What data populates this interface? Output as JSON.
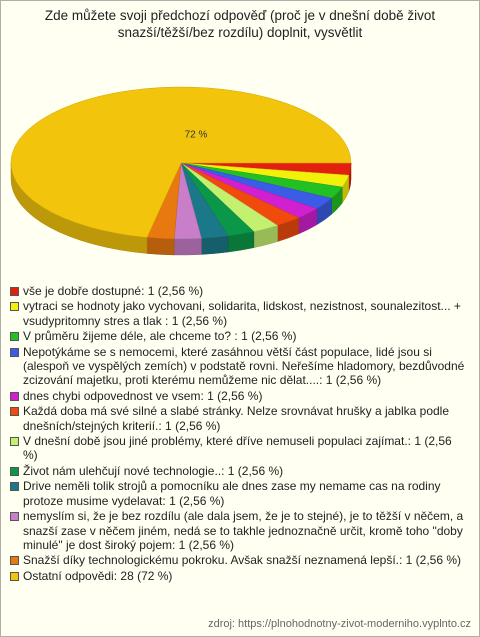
{
  "chart_data": {
    "type": "pie",
    "title": "Zde můžete svoji předchozí odpověď (proč je v dnešní době život snazší/těžší/bez rozdílu) doplnit, vysvětlit",
    "categories": [
      "vše je dobře dostupné: 1 (2,56 %)",
      "vytraci se hodnoty jako vychovani, solidarita, lidskost, nezistnost, sounalezitost... + vsudypritomny stres a tlak : 1 (2,56 %)",
      "V průměru žijeme déle, ale chceme to? : 1 (2,56 %)",
      "Nepotýkáme se s nemocemi, které zasáhnou větší část populace, lidé jsou si (alespoň ve vyspělých zemích) v podstatě rovni. Neřešíme hladomory, bezdůvodné zcizování majetku, proti kterému nemůžeme nic dělat....: 1 (2,56 %)",
      "dnes chybi odpovednost ve vsem: 1 (2,56 %)",
      "Každá doba má své silné a slabé stránky. Nelze srovnávat hrušky a jablka podle dnešních/stejných kriterií.: 1 (2,56 %)",
      "V dnešní době jsou jiné problémy, které dříve nemuseli populaci zajímat.: 1 (2,56 %)",
      "Život nám ulehčují nové technologie..: 1 (2,56 %)",
      "Drive neměli tolik strojů a pomocníku ale dnes zase my nemame cas na rodiny protoze musime vydelavat: 1 (2,56 %)",
      "nemyslím si, že je bez rozdílu (ale dala jsem, že je to stejné), je to těžší v něčem, a snazší zase v něčem jiném, nedá se to takhle jednoznačně určit, kromě toho \"doby minulé\" je dost široký pojem: 1 (2,56 %)",
      "Snažší díky technologickému pokroku. Avšak snažší neznamená lepší.: 1 (2,56 %)",
      "Ostatní odpovědi: 28 (72 %)"
    ],
    "values": [
      1,
      1,
      1,
      1,
      1,
      1,
      1,
      1,
      1,
      1,
      1,
      28
    ],
    "value_labels": [
      null,
      null,
      null,
      null,
      null,
      null,
      null,
      null,
      null,
      null,
      null,
      "72 %"
    ],
    "colors": [
      "#e3200e",
      "#f3f00c",
      "#22c022",
      "#3a5ce6",
      "#d020d0",
      "#f04a0c",
      "#c4f070",
      "#0a9848",
      "#1b7888",
      "#c87ec8",
      "#e87810",
      "#f2c40c"
    ],
    "source": "zdroj: https://plnohodnotny-zivot-moderniho.vyplnto.cz"
  }
}
